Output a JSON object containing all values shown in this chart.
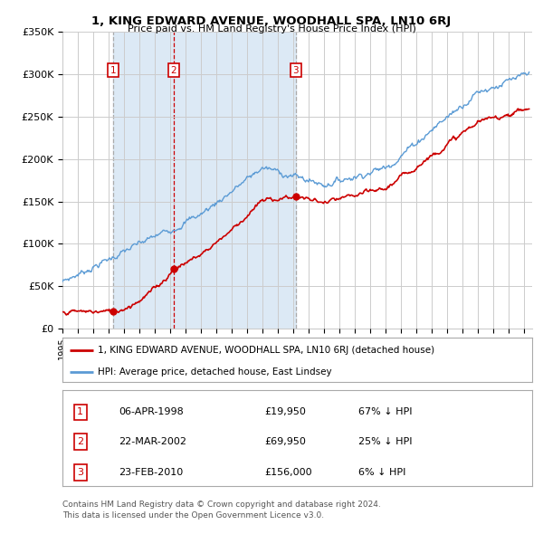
{
  "title": "1, KING EDWARD AVENUE, WOODHALL SPA, LN10 6RJ",
  "subtitle": "Price paid vs. HM Land Registry's House Price Index (HPI)",
  "red_label": "1, KING EDWARD AVENUE, WOODHALL SPA, LN10 6RJ (detached house)",
  "blue_label": "HPI: Average price, detached house, East Lindsey",
  "footer1": "Contains HM Land Registry data © Crown copyright and database right 2024.",
  "footer2": "This data is licensed under the Open Government Licence v3.0.",
  "ylim": [
    0,
    350000
  ],
  "yticks": [
    0,
    50000,
    100000,
    150000,
    200000,
    250000,
    300000,
    350000
  ],
  "ytick_labels": [
    "£0",
    "£50K",
    "£100K",
    "£150K",
    "£200K",
    "£250K",
    "£300K",
    "£350K"
  ],
  "xlim_start": 1995.0,
  "xlim_end": 2025.5,
  "sales": [
    {
      "num": 1,
      "year": 1998.27,
      "price": 19950,
      "date": "06-APR-1998",
      "label": "£19,950",
      "hpi_pct": "67% ↓ HPI"
    },
    {
      "num": 2,
      "year": 2002.23,
      "price": 69950,
      "date": "22-MAR-2002",
      "label": "£69,950",
      "hpi_pct": "25% ↓ HPI"
    },
    {
      "num": 3,
      "year": 2010.15,
      "price": 156000,
      "date": "23-FEB-2010",
      "label": "£156,000",
      "hpi_pct": "6% ↓ HPI"
    }
  ],
  "red_color": "#cc0000",
  "blue_color": "#5b9bd5",
  "shade_color": "#dce9f5",
  "vline_grey": "#aaaaaa",
  "vline_red": "#cc0000",
  "box_color": "#cc0000",
  "grid_color": "#cccccc",
  "bg_color": "#ffffff"
}
